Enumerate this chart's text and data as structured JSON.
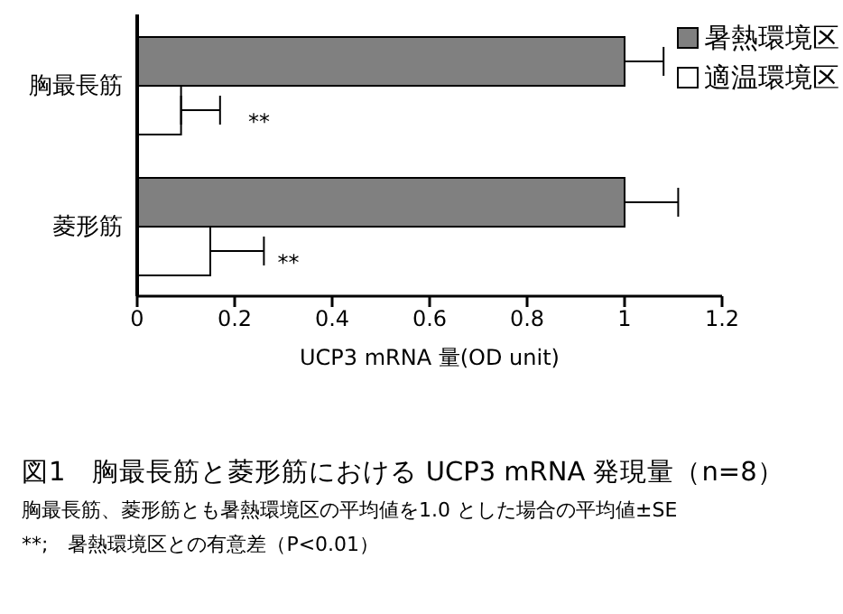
{
  "chart_data": {
    "type": "bar",
    "orientation": "horizontal",
    "title": "図1　胸最長筋と菱形筋における UCP3 mRNA 発現量（n=8）",
    "xlabel": "UCP3 mRNA 量(OD unit)",
    "categories": [
      "胸最長筋",
      "菱形筋"
    ],
    "series": [
      {
        "name": "暑熱環境区",
        "color": "#808080",
        "values": [
          1.0,
          1.0
        ],
        "errors": [
          [
            1.0,
            1.08
          ],
          [
            1.0,
            1.11
          ]
        ]
      },
      {
        "name": "適温環境区",
        "color": "#ffffff",
        "values": [
          0.09,
          0.15
        ],
        "errors": [
          [
            0.09,
            0.17
          ],
          [
            0.15,
            0.26
          ]
        ]
      }
    ],
    "xlim": [
      0,
      1.2
    ],
    "xticks": [
      0,
      0.2,
      0.4,
      0.6,
      0.8,
      1,
      1.2
    ],
    "grid": false,
    "legend": "top right",
    "annotations": [
      {
        "text": "**",
        "x": 0.25,
        "y": "胸最長筋"
      },
      {
        "text": "**",
        "x": 0.31,
        "y": "菱形筋"
      },
      "胸最長筋、菱形筋とも暑熱環境区の平均値を1.0 とした場合の平均値±SE",
      "**;　暑熱環境区との有意差（P<0.01）"
    ]
  }
}
